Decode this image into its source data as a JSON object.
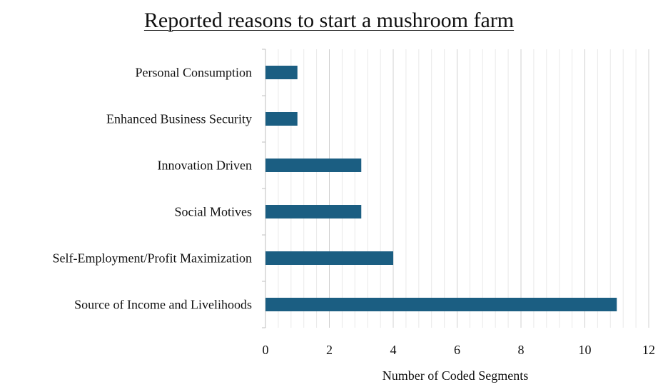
{
  "chart_data": {
    "type": "bar",
    "orientation": "horizontal",
    "title": "Reported reasons to start a mushroom farm",
    "xlabel": "Number of Coded Segments",
    "ylabel": "",
    "categories": [
      "Personal Consumption",
      "Enhanced Business Security",
      "Innovation Driven",
      "Social Motives",
      "Self-Employment/Profit Maximization",
      "Source of Income and Livelihoods"
    ],
    "values": [
      1,
      1,
      3,
      3,
      4,
      11
    ],
    "xlim": [
      0,
      12
    ],
    "xticks": [
      "0",
      "2",
      "4",
      "6",
      "8",
      "10",
      "12"
    ],
    "major_step": 2,
    "minor_step": 0.4,
    "grid": true,
    "legend": "none",
    "colors": {
      "bar": "#1b5e82",
      "grid_major": "#d0d0d0",
      "grid_minor": "#e9e9e9",
      "axis": "#bfbfbf"
    }
  }
}
